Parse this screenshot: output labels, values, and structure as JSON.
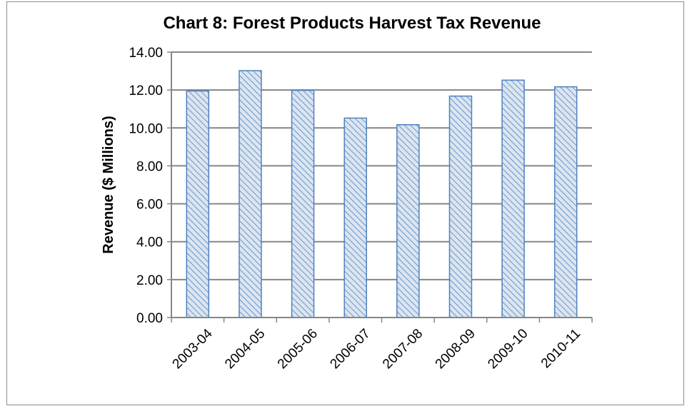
{
  "chart_data": {
    "type": "bar",
    "title": "Chart 8:  Forest Products Harvest Tax Revenue",
    "xlabel": "",
    "ylabel": "Revenue ($ Millions)",
    "categories": [
      "2003-04",
      "2004-05",
      "2005-06",
      "2006-07",
      "2007-08",
      "2008-09",
      "2009-10",
      "2010-11"
    ],
    "values": [
      11.95,
      13.02,
      11.98,
      10.52,
      10.17,
      11.68,
      12.52,
      12.17
    ],
    "ylim": [
      0,
      14
    ],
    "yticks": [
      "0.00",
      "2.00",
      "4.00",
      "6.00",
      "8.00",
      "10.00",
      "12.00",
      "14.00"
    ],
    "grid": true,
    "legend": "none",
    "colors": {
      "bar_fill": "#dbe5f1",
      "bar_hatch": "#4f81bd",
      "bar_edge": "#4f81bd",
      "gridline": "#868686",
      "axis": "#868686"
    }
  }
}
